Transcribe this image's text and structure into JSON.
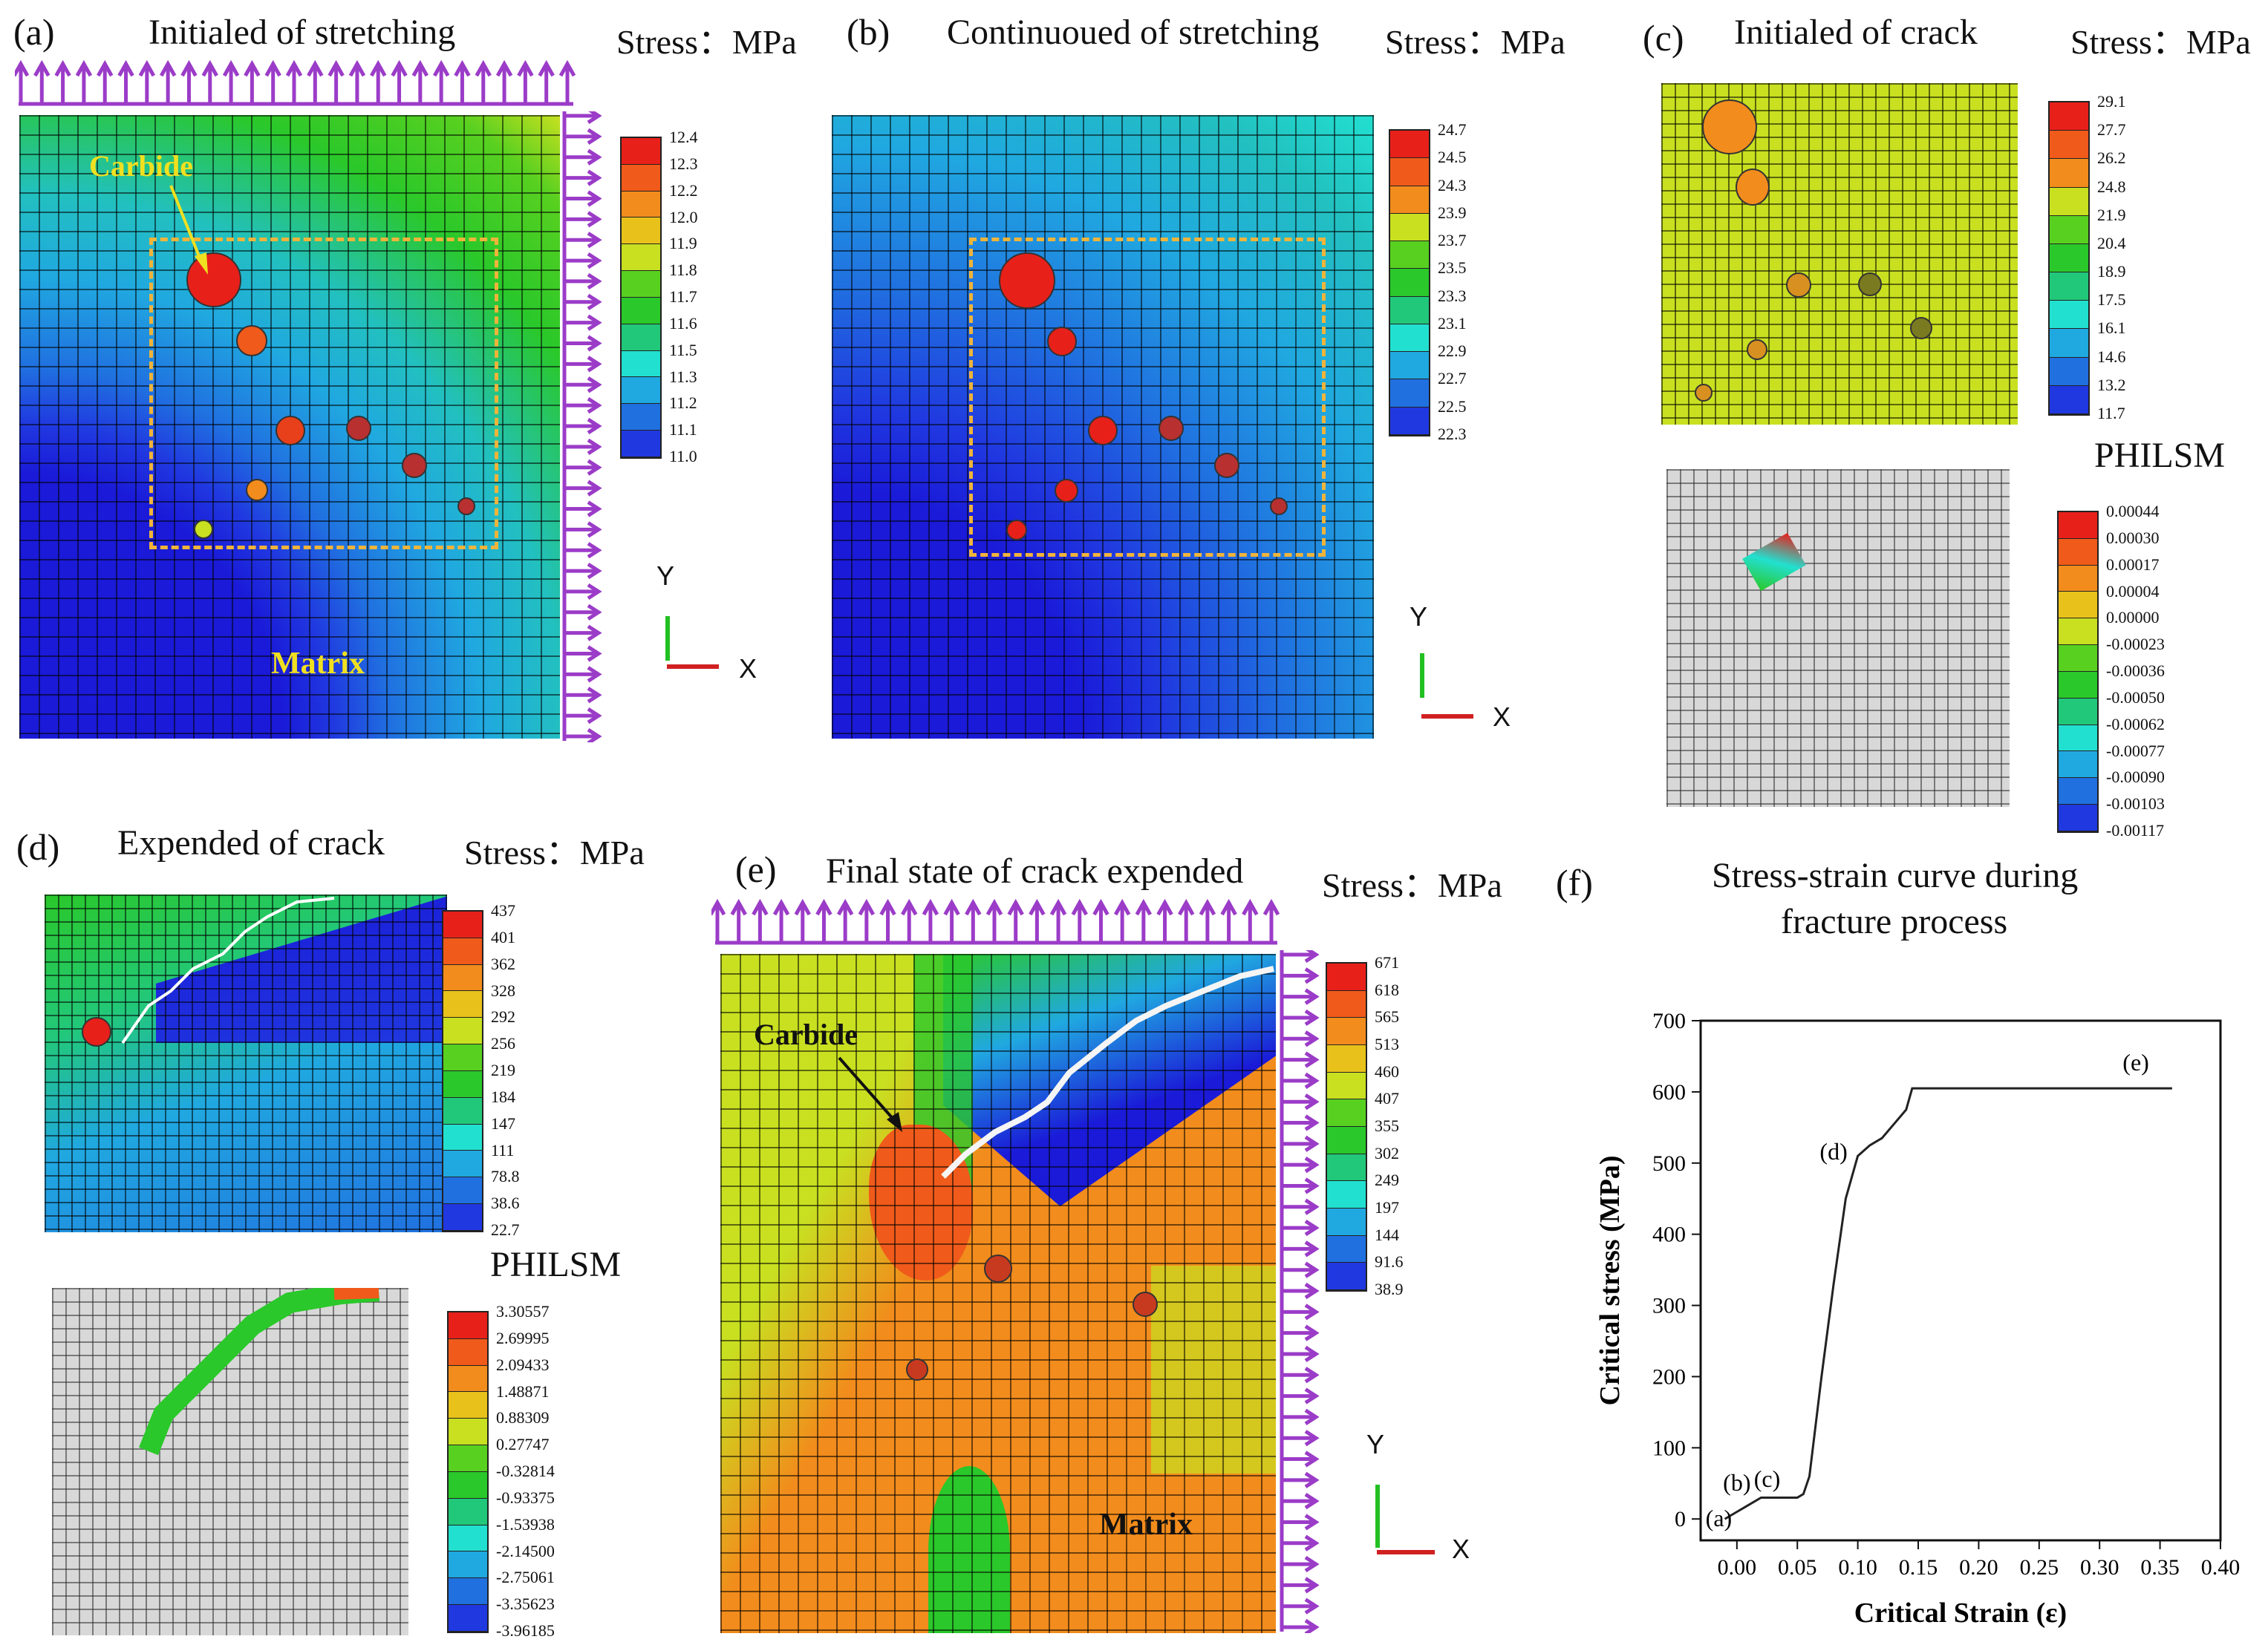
{
  "panels": {
    "a": {
      "label": "(a)",
      "title": "Initialed of stretching",
      "stress": "Stress：MPa",
      "ann_carbide": "Carbide",
      "ann_matrix": "Matrix",
      "legend": [
        "12.4",
        "12.3",
        "12.2",
        "12.0",
        "11.9",
        "11.8",
        "11.7",
        "11.6",
        "11.5",
        "11.3",
        "11.2",
        "11.1",
        "11.0"
      ]
    },
    "b": {
      "label": "(b)",
      "title": "Continuoued of stretching",
      "stress": "Stress：MPa",
      "legend": [
        "24.7",
        "24.5",
        "24.3",
        "23.9",
        "23.7",
        "23.5",
        "23.3",
        "23.1",
        "22.9",
        "22.7",
        "22.5",
        "22.3"
      ]
    },
    "c": {
      "label": "(c)",
      "title": "Initialed of crack",
      "stress": "Stress：MPa",
      "legend": [
        "29.1",
        "27.7",
        "26.2",
        "24.8",
        "21.9",
        "20.4",
        "18.9",
        "17.5",
        "16.1",
        "14.6",
        "13.2",
        "11.7"
      ],
      "philsm_title": "PHILSM",
      "philsm_legend": [
        "0.00044",
        "0.00030",
        "0.00017",
        "0.00004",
        "0.00000",
        "-0.00023",
        "-0.00036",
        "-0.00050",
        "-0.00062",
        "-0.00077",
        "-0.00090",
        "-0.00103",
        "-0.00117"
      ]
    },
    "d": {
      "label": "(d)",
      "title": "Expended of crack",
      "stress": "Stress：MPa",
      "legend": [
        "437",
        "401",
        "362",
        "328",
        "292",
        "256",
        "219",
        "184",
        "147",
        "111",
        "78.8",
        "38.6",
        "22.7"
      ],
      "philsm_title": "PHILSM",
      "philsm_legend": [
        "3.30557",
        "2.69995",
        "2.09433",
        "1.48871",
        "0.88309",
        "0.27747",
        "-0.32814",
        "-0.93375",
        "-1.53938",
        "-2.14500",
        "-2.75061",
        "-3.35623",
        "-3.96185"
      ]
    },
    "e": {
      "label": "(e)",
      "title": "Final state of crack expended",
      "stress": "Stress：MPa",
      "ann_carbide": "Carbide",
      "ann_matrix": "Matrix",
      "legend": [
        "671",
        "618",
        "565",
        "513",
        "460",
        "407",
        "355",
        "302",
        "249",
        "197",
        "144",
        "91.6",
        "38.9"
      ]
    },
    "f": {
      "label": "(f)",
      "title_line1": "Stress-strain curve during",
      "title_line2": "fracture process"
    }
  },
  "axis_triad": {
    "y": "Y",
    "x": "X"
  },
  "colors": {
    "legend13": [
      "#e8201a",
      "#f05a1a",
      "#f28c1c",
      "#e8c21a",
      "#c8e020",
      "#58d020",
      "#2ac82a",
      "#22c87a",
      "#22e0d0",
      "#20a8e0",
      "#2070e0",
      "#2038e0",
      "#1a1ad8"
    ],
    "legend12": [
      "#e8201a",
      "#f05a1a",
      "#f28c1c",
      "#c8e020",
      "#58d020",
      "#2ac82a",
      "#22c87a",
      "#22e0d0",
      "#20a8e0",
      "#2070e0",
      "#2038e0",
      "#1a1ad8"
    ]
  },
  "chart_data": {
    "type": "line",
    "title": "Stress-strain curve during fracture process",
    "xlabel": "Critical Strain (ε)",
    "ylabel": "Critical stress (MPa)",
    "xlim": [
      -0.03,
      0.4
    ],
    "ylim": [
      -30,
      700
    ],
    "xticks": [
      0.0,
      0.05,
      0.1,
      0.15,
      0.2,
      0.25,
      0.3,
      0.35,
      0.4
    ],
    "xtick_labels": [
      "0.00",
      "0.05",
      "0.10",
      "0.15",
      "0.20",
      "0.25",
      "0.30",
      "0.35",
      "0.40"
    ],
    "yticks": [
      0,
      100,
      200,
      300,
      400,
      500,
      600,
      700
    ],
    "x": [
      -0.01,
      0.0,
      0.01,
      0.02,
      0.03,
      0.04,
      0.05,
      0.055,
      0.06,
      0.07,
      0.08,
      0.09,
      0.1,
      0.11,
      0.12,
      0.13,
      0.14,
      0.145,
      0.15,
      0.2,
      0.25,
      0.3,
      0.36
    ],
    "y": [
      0,
      10,
      20,
      30,
      30,
      30,
      30,
      35,
      60,
      200,
      330,
      450,
      510,
      525,
      535,
      555,
      575,
      605,
      605,
      605,
      605,
      605,
      605
    ],
    "annotations": [
      {
        "text": "(a)",
        "x": -0.015,
        "y": -10
      },
      {
        "text": "(b)",
        "x": 0.0,
        "y": 40
      },
      {
        "text": "(c)",
        "x": 0.025,
        "y": 45
      },
      {
        "text": "(d)",
        "x": 0.08,
        "y": 505
      },
      {
        "text": "(e)",
        "x": 0.33,
        "y": 630
      }
    ]
  }
}
